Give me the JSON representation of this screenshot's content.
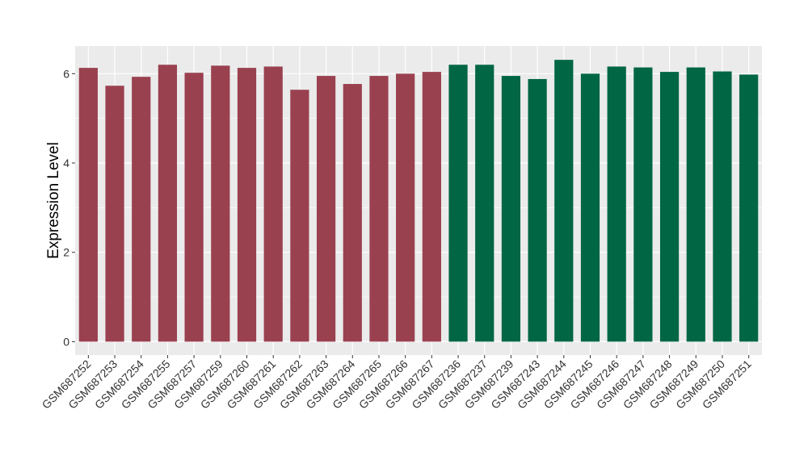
{
  "chart_data": {
    "type": "bar",
    "title": "",
    "xlabel": "",
    "ylabel": "Expression Level",
    "ylim": [
      -0.3,
      6.62
    ],
    "yticks": [
      0,
      2,
      4,
      6
    ],
    "grid": true,
    "categories": [
      "GSM687252",
      "GSM687253",
      "GSM687254",
      "GSM687255",
      "GSM687257",
      "GSM687259",
      "GSM687260",
      "GSM687261",
      "GSM687262",
      "GSM687263",
      "GSM687264",
      "GSM687265",
      "GSM687266",
      "GSM687267",
      "GSM687236",
      "GSM687237",
      "GSM687239",
      "GSM687243",
      "GSM687244",
      "GSM687245",
      "GSM687246",
      "GSM687247",
      "GSM687248",
      "GSM687249",
      "GSM687250",
      "GSM687251"
    ],
    "values": [
      6.13,
      5.73,
      5.93,
      6.2,
      6.02,
      6.18,
      6.13,
      6.16,
      5.64,
      5.95,
      5.77,
      5.95,
      6.0,
      6.04,
      6.2,
      6.2,
      5.95,
      5.88,
      6.31,
      6.0,
      6.16,
      6.14,
      6.04,
      6.14,
      6.05,
      5.98
    ],
    "group_colors": [
      "#9a4150",
      "#9a4150",
      "#9a4150",
      "#9a4150",
      "#9a4150",
      "#9a4150",
      "#9a4150",
      "#9a4150",
      "#9a4150",
      "#9a4150",
      "#9a4150",
      "#9a4150",
      "#9a4150",
      "#9a4150",
      "#006644",
      "#006644",
      "#006644",
      "#006644",
      "#006644",
      "#006644",
      "#006644",
      "#006644",
      "#006644",
      "#006644",
      "#006644",
      "#006644"
    ],
    "panel_color": "#ebebeb"
  }
}
